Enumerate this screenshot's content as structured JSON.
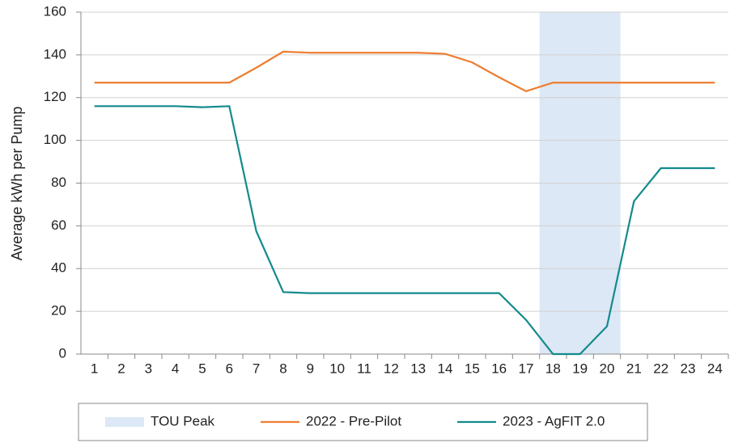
{
  "chart_data": {
    "type": "line",
    "y_label": "Average kWh per Pump",
    "categories": [
      "1",
      "2",
      "3",
      "4",
      "5",
      "6",
      "7",
      "8",
      "9",
      "10",
      "11",
      "12",
      "13",
      "14",
      "15",
      "16",
      "17",
      "18",
      "19",
      "20",
      "21",
      "22",
      "23",
      "24"
    ],
    "ylim": [
      0,
      160
    ],
    "yticks": [
      0,
      20,
      40,
      60,
      80,
      100,
      120,
      140,
      160
    ],
    "grid": true,
    "legend": "bottom",
    "series": [
      {
        "name": "TOU Peak",
        "type": "bar",
        "color": "#dce8f5",
        "values": [
          null,
          null,
          null,
          null,
          null,
          null,
          null,
          null,
          null,
          null,
          null,
          null,
          null,
          null,
          null,
          null,
          null,
          160,
          160,
          160,
          null,
          null,
          null,
          null
        ]
      },
      {
        "name": "2022 - Pre-Pilot",
        "type": "line",
        "color": "#ed7d31",
        "values": [
          127,
          127,
          127,
          127,
          127,
          127,
          134,
          141.5,
          141,
          141,
          141,
          141,
          141,
          140.5,
          136.5,
          129.5,
          123,
          127,
          127,
          127,
          127,
          127,
          127,
          127
        ]
      },
      {
        "name": "2023 - AgFIT 2.0",
        "type": "line",
        "color": "#138a8c",
        "values": [
          116,
          116,
          116,
          116,
          115.5,
          116,
          57.5,
          29,
          28.5,
          28.5,
          28.5,
          28.5,
          28.5,
          28.5,
          28.5,
          28.5,
          16,
          0,
          0,
          13,
          71.5,
          87,
          87,
          87
        ]
      }
    ]
  }
}
